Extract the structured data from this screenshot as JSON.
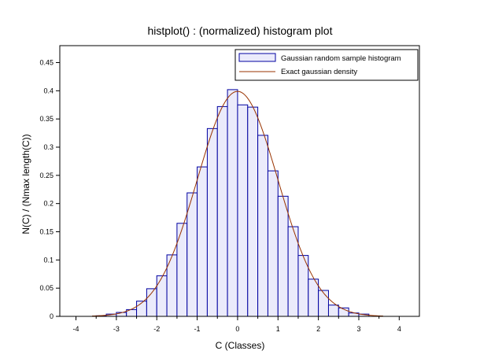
{
  "chart_data": {
    "type": "bar",
    "title": "histplot() : (normalized) histogram plot",
    "xlabel": "C (Classes)",
    "ylabel": "N(C) / (Nmax length(C))",
    "xlim": [
      -4.4,
      4.5
    ],
    "ylim": [
      0,
      0.48
    ],
    "xticks": [
      -4,
      -3,
      -2,
      -1,
      0,
      1,
      2,
      3,
      4
    ],
    "yticks": [
      0,
      0.05,
      0.1,
      0.15,
      0.2,
      0.25,
      0.3,
      0.35,
      0.4,
      0.45
    ],
    "ytick_labels": [
      "0",
      "0.05",
      "0.1",
      "0.15",
      "0.2",
      "0.25",
      "0.3",
      "0.35",
      "0.4",
      "0.45"
    ],
    "grid": false,
    "legend_position": "top-right",
    "bin_width": 0.25,
    "series": [
      {
        "name": "Gaussian random sample histogram",
        "kind": "histogram",
        "color": "#0000a0",
        "fill": "#ebebfb",
        "bin_edges": [
          -3.5,
          -3.25,
          -3.0,
          -2.75,
          -2.5,
          -2.25,
          -2.0,
          -1.75,
          -1.5,
          -1.25,
          -1.0,
          -0.75,
          -0.5,
          -0.25,
          0.0,
          0.25,
          0.5,
          0.75,
          1.0,
          1.25,
          1.5,
          1.75,
          2.0,
          2.25,
          2.5,
          2.75,
          3.0,
          3.25
        ],
        "values": [
          0.001,
          0.004,
          0.007,
          0.012,
          0.027,
          0.049,
          0.072,
          0.109,
          0.165,
          0.219,
          0.265,
          0.333,
          0.372,
          0.402,
          0.375,
          0.371,
          0.321,
          0.258,
          0.213,
          0.159,
          0.108,
          0.066,
          0.046,
          0.02,
          0.015,
          0.006,
          0.004
        ]
      },
      {
        "name": "Exact gaussian density",
        "kind": "line",
        "color": "#993300",
        "function": "normal_pdf",
        "mean": 0,
        "sd": 1,
        "x_range": [
          -3.6,
          3.6
        ]
      }
    ]
  }
}
